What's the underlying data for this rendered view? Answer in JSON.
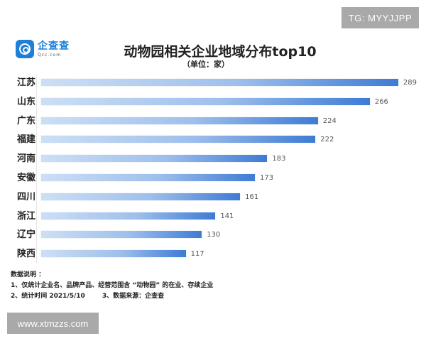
{
  "watermarks": {
    "top_right": "TG: MYYJJPP",
    "bottom_left": "www.xtmzzs.com"
  },
  "logo": {
    "name_cn": "企查查",
    "name_en": "Qcc.com",
    "icon": "qcc-logo-icon"
  },
  "header": {
    "title": "动物园相关企业地域分布top10",
    "subtitle": "（单位：家）"
  },
  "colors": {
    "bar_start": "#cddff5",
    "bar_end": "#3e7bd4",
    "logo_blue": "#1e7fd8",
    "watermark_bg": "#a9a9a9"
  },
  "chart_data": {
    "type": "bar",
    "orientation": "horizontal",
    "title": "动物园相关企业地域分布top10",
    "subtitle": "（单位：家）",
    "xlabel": "",
    "ylabel": "",
    "categories": [
      "江苏",
      "山东",
      "广东",
      "福建",
      "河南",
      "安徽",
      "四川",
      "浙江",
      "辽宁",
      "陕西"
    ],
    "values": [
      289,
      266,
      224,
      222,
      183,
      173,
      161,
      141,
      130,
      117
    ],
    "data_labels": true,
    "grid": false,
    "legend": null,
    "xlim": [
      0,
      300
    ]
  },
  "notes": {
    "heading": "数据说明 ：",
    "line1": "1、仅统计企业名、品牌产品、经营范围含 “动物园” 的在业、存续企业",
    "line2a": "2、统计时间 2021/5/10",
    "line2b": "3、数据来源：企查查"
  }
}
